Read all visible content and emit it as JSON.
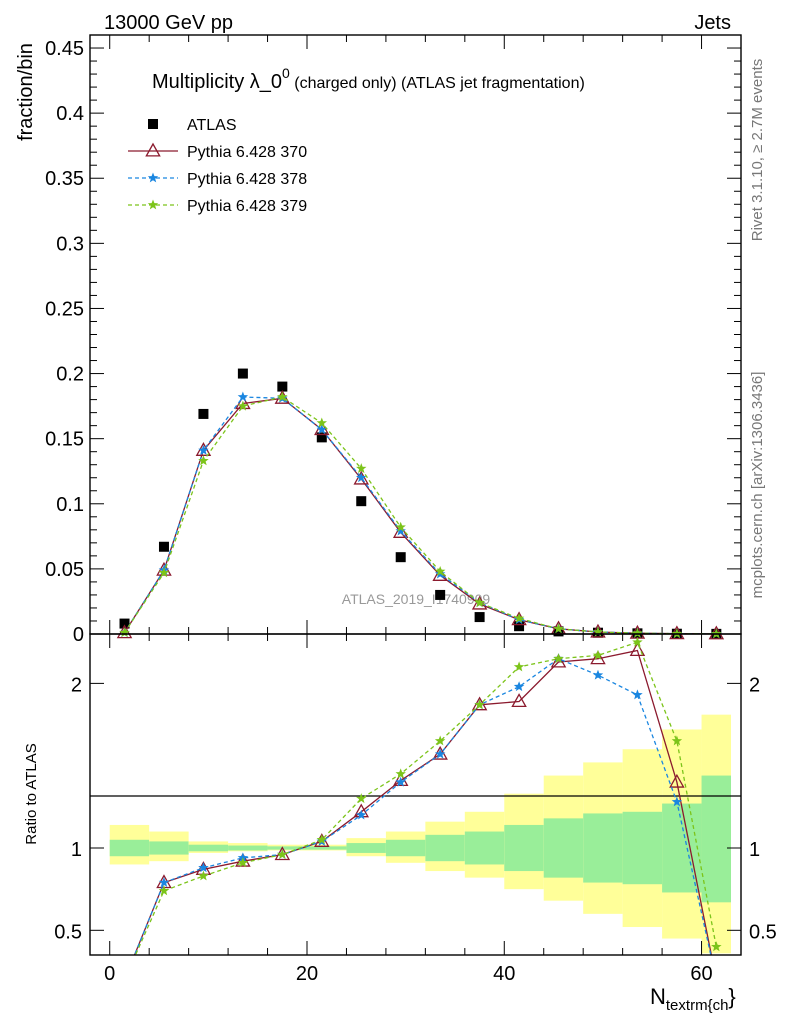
{
  "header": {
    "left": "13000 GeV pp",
    "right": "Jets"
  },
  "side_labels": {
    "rivet": "Rivet 3.1.10, ≥ 2.7M events",
    "mcplots": "mcplots.cern.ch [arXiv:1306.3436]"
  },
  "watermark": "ATLAS_2019_I1740909",
  "chart_data": [
    {
      "type": "scatter",
      "panel": "main",
      "title_main": "Multiplicity λ_0",
      "title_sup": "0",
      "title_rest": " (charged only) (ATLAS jet fragmentation)",
      "ylabel": "fraction/bin",
      "xlim": [
        -2,
        64
      ],
      "ylim": [
        0,
        0.46
      ],
      "yticks": [
        0,
        0.05,
        0.1,
        0.15,
        0.2,
        0.25,
        0.3,
        0.35,
        0.4,
        0.45
      ],
      "ytick_labels": [
        "0",
        "0.05",
        "0.1",
        "0.15",
        "0.2",
        "0.25",
        "0.3",
        "0.35",
        "0.4",
        "0.45"
      ],
      "legend_position": "top-left",
      "x": [
        1.5,
        5.5,
        9.5,
        13.5,
        17.5,
        21.5,
        25.5,
        29.5,
        33.5,
        37.5,
        41.5,
        45.5,
        49.5,
        53.5,
        57.5,
        61.5
      ],
      "series": [
        {
          "name": "ATLAS",
          "style": "square",
          "color": "#000000",
          "values": [
            0.008,
            0.067,
            0.169,
            0.2,
            0.19,
            0.151,
            0.102,
            0.059,
            0.03,
            0.013,
            0.006,
            0.002,
            0.001,
            0.0005,
            0.0002,
            0.0001
          ]
        },
        {
          "name": "Pythia 6.428 370",
          "style": "triangle",
          "color": "#8b1a2e",
          "values": [
            0.001,
            0.049,
            0.141,
            0.177,
            0.181,
            0.157,
            0.119,
            0.078,
            0.045,
            0.023,
            0.011,
            0.004,
            0.0015,
            0.0006,
            0.0002,
            0.0001
          ]
        },
        {
          "name": "Pythia 6.428 378",
          "style": "star",
          "color": "#1a86e0",
          "values": [
            0.001,
            0.049,
            0.141,
            0.182,
            0.181,
            0.157,
            0.12,
            0.079,
            0.046,
            0.024,
            0.011,
            0.004,
            0.0015,
            0.0006,
            0.0002,
            0.0001
          ]
        },
        {
          "name": "Pythia 6.428 379",
          "style": "star",
          "color": "#7cc41a",
          "values": [
            0.001,
            0.047,
            0.133,
            0.175,
            0.182,
            0.162,
            0.127,
            0.082,
            0.048,
            0.024,
            0.012,
            0.004,
            0.0015,
            0.0006,
            0.0002,
            0.0001
          ]
        }
      ]
    },
    {
      "type": "line",
      "panel": "ratio",
      "ylabel": "Ratio to ATLAS",
      "xlabel": "N",
      "xlabel_sub": "textrm{ch",
      "xlabel_suffix": "}",
      "xlim": [
        -2,
        64
      ],
      "ylim": [
        0.35,
        2.3
      ],
      "yticks": [
        0.5,
        1,
        2
      ],
      "ytick_labels": [
        "0.5",
        "1",
        "2"
      ],
      "xticks": [
        0,
        20,
        40,
        60
      ],
      "xtick_labels": [
        "0",
        "20",
        "40",
        "60"
      ],
      "band_edges": [
        0,
        4,
        8,
        12,
        16,
        20,
        24,
        28,
        32,
        36,
        40,
        44,
        48,
        52,
        56,
        60,
        64
      ],
      "band_stat_lo": [
        0.95,
        0.96,
        0.98,
        0.985,
        0.99,
        0.99,
        0.97,
        0.95,
        0.92,
        0.9,
        0.86,
        0.82,
        0.79,
        0.78,
        0.73,
        0.67
      ],
      "band_stat_hi": [
        1.05,
        1.04,
        1.02,
        1.015,
        1.01,
        1.01,
        1.03,
        1.05,
        1.08,
        1.1,
        1.14,
        1.18,
        1.21,
        1.22,
        1.27,
        1.44
      ],
      "band_tot_lo": [
        0.9,
        0.92,
        0.97,
        0.98,
        0.985,
        0.985,
        0.95,
        0.91,
        0.86,
        0.82,
        0.75,
        0.68,
        0.6,
        0.52,
        0.45,
        0.36
      ],
      "band_tot_hi": [
        1.14,
        1.1,
        1.04,
        1.03,
        1.02,
        1.02,
        1.06,
        1.1,
        1.16,
        1.22,
        1.33,
        1.44,
        1.52,
        1.6,
        1.72,
        1.81
      ],
      "x": [
        1.5,
        5.5,
        9.5,
        13.5,
        17.5,
        21.5,
        25.5,
        29.5,
        33.5,
        37.5,
        41.5,
        45.5,
        49.5,
        53.5,
        57.5,
        61.5
      ],
      "series": [
        {
          "name": "Pythia 6.428 370",
          "style": "triangle",
          "color": "#8b1a2e",
          "values": [
            0.2,
            0.79,
            0.87,
            0.92,
            0.96,
            1.04,
            1.22,
            1.41,
            1.57,
            1.87,
            1.89,
            2.13,
            2.15,
            2.2,
            1.4,
            0.2
          ]
        },
        {
          "name": "Pythia 6.428 378",
          "style": "star",
          "color": "#1a86e0",
          "values": [
            0.2,
            0.79,
            0.88,
            0.94,
            0.96,
            1.04,
            1.2,
            1.4,
            1.57,
            1.87,
            1.98,
            2.15,
            2.05,
            1.93,
            1.28,
            0.2
          ]
        },
        {
          "name": "Pythia 6.428 379",
          "style": "star",
          "color": "#7cc41a",
          "values": [
            0.2,
            0.74,
            0.83,
            0.91,
            0.96,
            1.05,
            1.3,
            1.45,
            1.65,
            1.87,
            2.1,
            2.15,
            2.17,
            2.25,
            1.65,
            0.4
          ]
        }
      ]
    }
  ]
}
